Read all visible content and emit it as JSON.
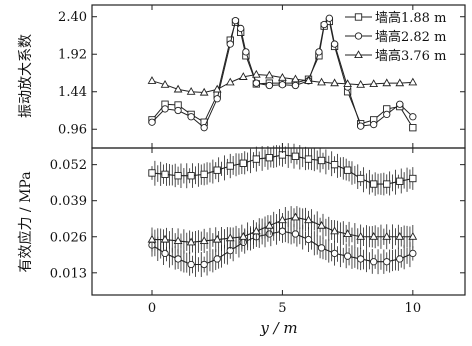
{
  "chart_data": [
    {
      "type": "line",
      "panel": "top",
      "ylabel": "振动放大系数",
      "xlabel": "",
      "xlim": [
        -2.3,
        12.0
      ],
      "ylim": [
        0.72,
        2.55
      ],
      "xticks": [
        0,
        5,
        10
      ],
      "yticks": [
        0.96,
        1.44,
        1.92,
        2.4
      ],
      "ytick_labels": [
        "0.96",
        "1.44",
        "1.92",
        "2.40"
      ],
      "grid": false,
      "legend": "top-right",
      "series": [
        {
          "name": "墙高1.88 m",
          "marker": "square",
          "x": [
            0,
            0.5,
            1.0,
            1.5,
            2.0,
            2.5,
            3.0,
            3.2,
            3.4,
            3.6,
            4.0,
            4.5,
            5.0,
            5.5,
            6.0,
            6.4,
            6.6,
            6.8,
            7.0,
            7.5,
            8.0,
            8.5,
            9.0,
            9.5,
            10.0
          ],
          "y": [
            1.08,
            1.28,
            1.27,
            1.15,
            1.05,
            1.4,
            2.1,
            2.33,
            2.2,
            1.9,
            1.54,
            1.55,
            1.55,
            1.55,
            1.6,
            1.9,
            2.28,
            2.34,
            2.02,
            1.44,
            1.03,
            1.08,
            1.22,
            1.25,
            0.98
          ]
        },
        {
          "name": "墙高2.82 m",
          "marker": "circle",
          "x": [
            0,
            0.5,
            1.0,
            1.5,
            2.0,
            2.5,
            3.0,
            3.2,
            3.4,
            3.6,
            4.0,
            4.5,
            5.0,
            5.5,
            6.0,
            6.4,
            6.6,
            6.8,
            7.0,
            7.5,
            8.0,
            8.5,
            9.0,
            9.5,
            10.0
          ],
          "y": [
            1.05,
            1.22,
            1.2,
            1.12,
            0.98,
            1.35,
            2.05,
            2.35,
            2.25,
            1.95,
            1.55,
            1.52,
            1.53,
            1.52,
            1.58,
            1.95,
            2.3,
            2.38,
            2.05,
            1.5,
            1.0,
            1.02,
            1.15,
            1.28,
            1.12
          ]
        },
        {
          "name": "墙高3.76 m",
          "marker": "triangle",
          "x": [
            0,
            0.5,
            1.0,
            1.5,
            2.0,
            2.5,
            3.0,
            3.5,
            4.0,
            4.5,
            5.0,
            5.5,
            6.0,
            6.5,
            7.0,
            7.5,
            8.0,
            8.5,
            9.0,
            9.5,
            10.0
          ],
          "y": [
            1.58,
            1.53,
            1.47,
            1.44,
            1.43,
            1.47,
            1.56,
            1.63,
            1.66,
            1.65,
            1.62,
            1.6,
            1.58,
            1.56,
            1.55,
            1.54,
            1.53,
            1.54,
            1.55,
            1.55,
            1.56
          ]
        }
      ]
    },
    {
      "type": "line",
      "panel": "bottom",
      "ylabel": "有效应力 / MPa",
      "xlabel": "y / m",
      "xlim": [
        -2.3,
        12.0
      ],
      "ylim": [
        0.005,
        0.058
      ],
      "xticks": [
        0,
        5,
        10
      ],
      "xtick_labels": [
        "0",
        "5",
        "10"
      ],
      "yticks": [
        0.013,
        0.026,
        0.039,
        0.052
      ],
      "ytick_labels": [
        "0.013",
        "0.026",
        "0.039",
        "0.052"
      ],
      "grid": false,
      "legend": "none",
      "series": [
        {
          "name": "墙高1.88 m",
          "marker": "square",
          "x": [
            0,
            0.5,
            1,
            1.5,
            2,
            2.5,
            3,
            3.5,
            4,
            4.5,
            5,
            5.5,
            6,
            6.5,
            7,
            7.5,
            8,
            8.5,
            9,
            9.5,
            10
          ],
          "y": [
            0.049,
            0.0485,
            0.048,
            0.048,
            0.0485,
            0.05,
            0.0515,
            0.0525,
            0.054,
            0.0545,
            0.0555,
            0.055,
            0.054,
            0.0535,
            0.052,
            0.05,
            0.047,
            0.045,
            0.045,
            0.046,
            0.047
          ]
        },
        {
          "name": "墙高2.82 m",
          "marker": "circle",
          "x": [
            0,
            0.5,
            1,
            1.5,
            2,
            2.5,
            3,
            3.5,
            4,
            4.5,
            5,
            5.5,
            6,
            6.5,
            7,
            7.5,
            8,
            8.5,
            9,
            9.5,
            10
          ],
          "y": [
            0.023,
            0.02,
            0.018,
            0.016,
            0.016,
            0.018,
            0.021,
            0.024,
            0.026,
            0.027,
            0.028,
            0.027,
            0.025,
            0.022,
            0.02,
            0.019,
            0.018,
            0.017,
            0.017,
            0.018,
            0.02
          ]
        },
        {
          "name": "墙高3.76 m",
          "marker": "triangle",
          "x": [
            0,
            0.5,
            1,
            1.5,
            2,
            2.5,
            3,
            3.5,
            4,
            4.5,
            5,
            5.5,
            6,
            6.5,
            7,
            7.5,
            8,
            8.5,
            9,
            9.5,
            10
          ],
          "y": [
            0.025,
            0.025,
            0.0245,
            0.024,
            0.0245,
            0.025,
            0.0255,
            0.026,
            0.028,
            0.03,
            0.032,
            0.033,
            0.032,
            0.03,
            0.028,
            0.027,
            0.026,
            0.026,
            0.026,
            0.026,
            0.026
          ]
        }
      ]
    }
  ]
}
